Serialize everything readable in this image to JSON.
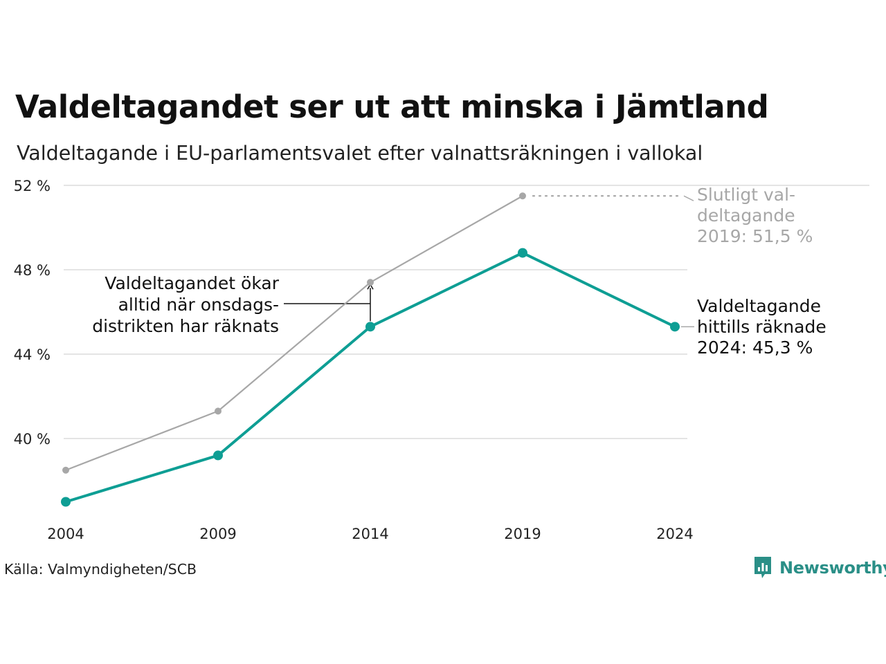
{
  "title": "Valdeltagandet ser ut att minska i Jämtland",
  "subtitle": "Valdeltagande i EU-parlamentsvalet efter valnattsräkningen i vallokal",
  "source": "Källa: Valmyndigheten/SCB",
  "brand": "Newsworthy",
  "colors": {
    "teal": "#0e9e94",
    "gray": "#a7a7a7",
    "grid": "#e4e4e4",
    "brand": "#2a8f87"
  },
  "chart_data": {
    "type": "line",
    "categories": [
      "2004",
      "2009",
      "2014",
      "2019",
      "2024"
    ],
    "yticks": [
      {
        "value": 40,
        "label": "40 %"
      },
      {
        "value": 44,
        "label": "44 %"
      },
      {
        "value": 48,
        "label": "48 %"
      },
      {
        "value": 52,
        "label": "52 %"
      }
    ],
    "ylim": [
      36,
      52
    ],
    "grid": true,
    "series": [
      {
        "key": "final",
        "values": [
          38.5,
          41.3,
          47.4,
          51.5,
          null
        ]
      },
      {
        "key": "election_night",
        "values": [
          37.0,
          39.2,
          45.3,
          48.8,
          45.3
        ]
      }
    ],
    "annotations": {
      "final_2019": [
        "Slutligt val-",
        "deltagande",
        "2019: 51,5 %"
      ],
      "night_2024": [
        "Valdeltagande",
        "hittills räknade",
        "2024: 45,3 %"
      ],
      "wednesday": [
        "Valdeltagandet ökar",
        "alltid när onsdags-",
        "distrikten har räknats"
      ]
    }
  }
}
